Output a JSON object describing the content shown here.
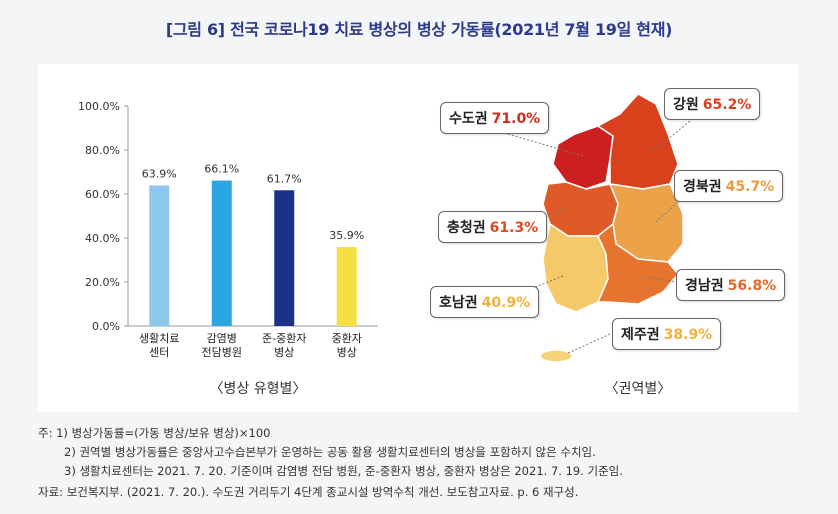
{
  "title": "[그림 6] 전국 코로나19 치료 병상의 병상 가동률(2021년 7월 19일 현재)",
  "chart_data": [
    {
      "type": "bar",
      "categories": [
        [
          "생활치료",
          "센터"
        ],
        [
          "감염병",
          "전담병원"
        ],
        [
          "준-중환자",
          "병상"
        ],
        [
          "중환자",
          "병상"
        ]
      ],
      "values": [
        63.9,
        66.1,
        61.7,
        35.9
      ],
      "value_labels": [
        "63.9%",
        "66.1%",
        "61.7%",
        "35.9%"
      ],
      "colors": [
        "#8ec8ee",
        "#2aa6e2",
        "#1c3188",
        "#f5df45"
      ],
      "ylim": [
        0,
        100
      ],
      "yticks": [
        "0.0%",
        "20.0%",
        "40.0%",
        "60.0%",
        "80.0%",
        "100.0%"
      ],
      "caption": "〈병상 유형별〉"
    },
    {
      "type": "map",
      "caption": "〈권역별〉",
      "regions": [
        {
          "name": "수도권",
          "value": "71.0%",
          "color": "#cc2020",
          "value_color": "#d42a1e"
        },
        {
          "name": "강원",
          "value": "65.2%",
          "color": "#d9401c",
          "value_color": "#d9401c"
        },
        {
          "name": "경북권",
          "value": "45.7%",
          "color": "#eda24a",
          "value_color": "#e89a3c"
        },
        {
          "name": "충청권",
          "value": "61.3%",
          "color": "#e05a28",
          "value_color": "#dd4a20"
        },
        {
          "name": "경남권",
          "value": "56.8%",
          "color": "#e6732e",
          "value_color": "#e2692a"
        },
        {
          "name": "호남권",
          "value": "40.9%",
          "color": "#f5c96a",
          "value_color": "#efb23c"
        },
        {
          "name": "제주권",
          "value": "38.9%",
          "color": "#f7d478",
          "value_color": "#efb23c"
        }
      ]
    }
  ],
  "notes": [
    "주: 1) 병상가동률=(가동 병상/보유 병상)×100",
    "2) 권역별 병상가동률은 중앙사고수습본부가 운영하는 공동 활용 생활치료센터의 병상을 포함하지 않은 수치임.",
    "3) 생활치료센터는 2021. 7. 20. 기준이며 감염병 전담 병원, 준-중환자 병상, 중환자 병상은 2021. 7. 19. 기준임."
  ],
  "source": "자료: 보건복지부. (2021. 7. 20.). 수도권 거리두기 4단계 종교시설 방역수칙 개선. 보도참고자료. p. 6 재구성."
}
